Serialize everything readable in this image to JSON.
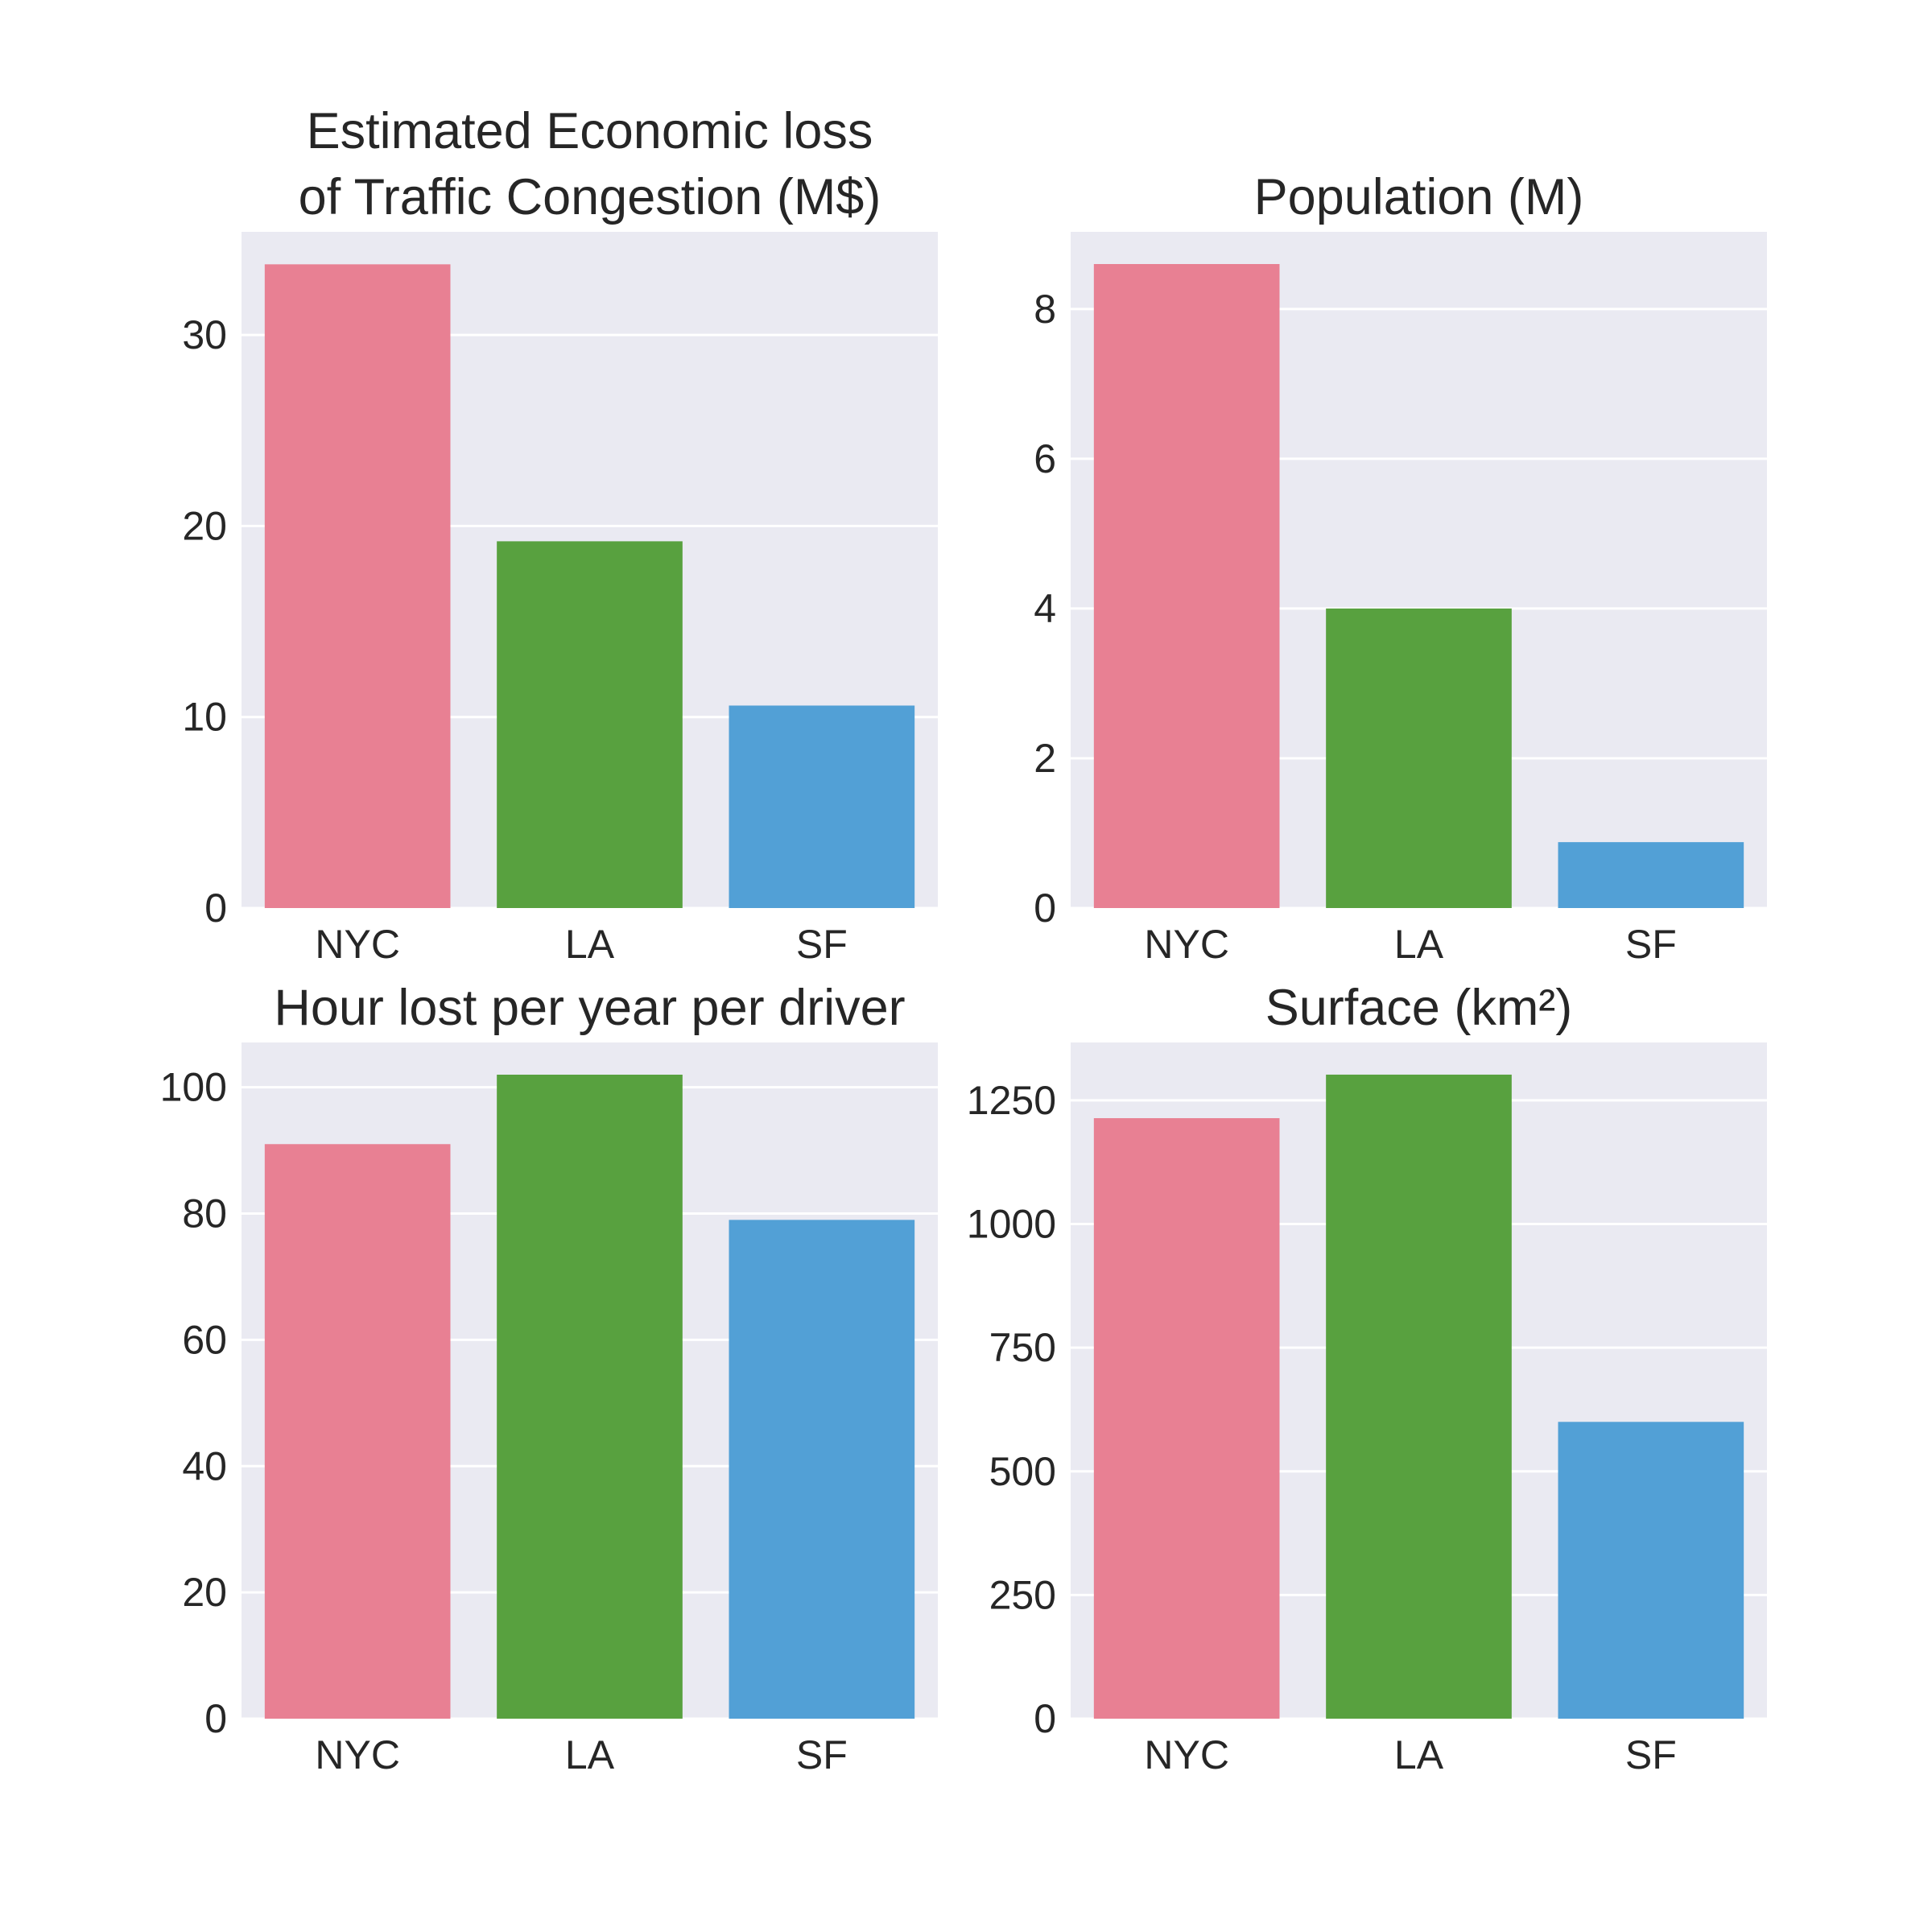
{
  "chart_data": [
    {
      "type": "bar",
      "title": [
        "Estimated Economic loss",
        "of Traffic Congestion (M$)"
      ],
      "categories": [
        "NYC",
        "LA",
        "SF"
      ],
      "values": [
        33.7,
        19.2,
        10.6
      ],
      "colors": [
        "#e88093",
        "#58a13f",
        "#52a0d6"
      ],
      "ylim": [
        0,
        35.4
      ],
      "yticks": [
        0,
        10,
        20,
        30
      ],
      "grid": true
    },
    {
      "type": "bar",
      "title": [
        "Population (M)"
      ],
      "categories": [
        "NYC",
        "LA",
        "SF"
      ],
      "values": [
        8.6,
        4.0,
        0.88
      ],
      "colors": [
        "#e88093",
        "#58a13f",
        "#52a0d6"
      ],
      "ylim": [
        0,
        9.03
      ],
      "yticks": [
        0,
        2,
        4,
        6,
        8
      ],
      "grid": true
    },
    {
      "type": "bar",
      "title": [
        "Hour lost per year per driver"
      ],
      "categories": [
        "NYC",
        "LA",
        "SF"
      ],
      "values": [
        91,
        102,
        79
      ],
      "colors": [
        "#e88093",
        "#58a13f",
        "#52a0d6"
      ],
      "ylim": [
        0,
        107.1
      ],
      "yticks": [
        0,
        20,
        40,
        60,
        80,
        100
      ],
      "grid": true
    },
    {
      "type": "bar",
      "title": [
        "Surface (km²)"
      ],
      "categories": [
        "NYC",
        "LA",
        "SF"
      ],
      "values": [
        1214,
        1302,
        600
      ],
      "colors": [
        "#e88093",
        "#58a13f",
        "#52a0d6"
      ],
      "ylim": [
        0,
        1367
      ],
      "yticks": [
        0,
        250,
        500,
        750,
        1000,
        1250
      ],
      "grid": true
    }
  ]
}
